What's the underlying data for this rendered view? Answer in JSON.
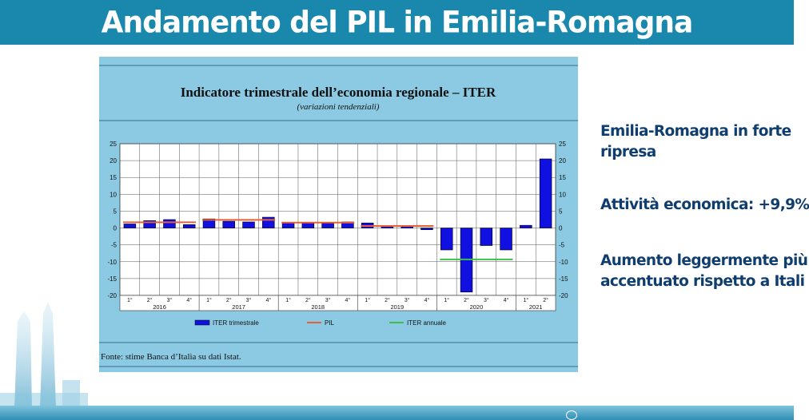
{
  "slide": {
    "title": "Andamento del PIL in Emilia-Romagna",
    "bullets": [
      [
        "Emilia-Romagna in forte",
        "ripresa"
      ],
      [
        "Attività economica: +9,9%"
      ],
      [
        "Aumento leggermente più",
        "accentuato rispetto a Itali"
      ]
    ],
    "colors": {
      "banner": "#1a87ad",
      "text": "#0f3d6e"
    }
  },
  "chart_data": {
    "type": "bar",
    "title": "Indicatore trimestrale dell’economia regionale – ITER",
    "subtitle": "(variazioni tendenziali)",
    "source": "Fonte: stime Banca d’Italia su dati Istat.",
    "ylim": [
      -20,
      25
    ],
    "yticks": [
      25,
      20,
      15,
      10,
      5,
      0,
      -5,
      -10,
      -15,
      -20
    ],
    "grid": true,
    "legend_position": "bottom",
    "years": [
      {
        "label": "2016",
        "quarters": [
          "1°",
          "2°",
          "3°",
          "4°"
        ]
      },
      {
        "label": "2017",
        "quarters": [
          "1°",
          "2°",
          "3°",
          "4°"
        ]
      },
      {
        "label": "2018",
        "quarters": [
          "1°",
          "2°",
          "3°",
          "4°"
        ]
      },
      {
        "label": "2019",
        "quarters": [
          "1°",
          "2°",
          "3°",
          "4°"
        ]
      },
      {
        "label": "2020",
        "quarters": [
          "1°",
          "2°",
          "3°",
          "4°"
        ]
      },
      {
        "label": "2021",
        "quarters": [
          "1°",
          "2°"
        ]
      }
    ],
    "series": [
      {
        "name": "ITER trimestrale",
        "kind": "bar",
        "color": "#1010e0",
        "values": [
          1.2,
          2.2,
          2.5,
          1.0,
          2.7,
          2.0,
          1.8,
          3.2,
          1.5,
          1.5,
          1.4,
          1.8,
          1.5,
          0.6,
          0.6,
          -0.5,
          -6.5,
          -19.0,
          -5.2,
          -6.5,
          0.8,
          20.5
        ]
      },
      {
        "name": "PIL",
        "kind": "step",
        "color": "#e8603a",
        "values": [
          1.7,
          1.7,
          1.7,
          1.7,
          2.4,
          2.4,
          2.4,
          2.4,
          1.6,
          1.6,
          1.6,
          1.6,
          0.6,
          0.6,
          0.6,
          0.6,
          null,
          null,
          null,
          null,
          null,
          null
        ]
      },
      {
        "name": "ITER annuale",
        "kind": "step",
        "color": "#3cbf4a",
        "values": [
          null,
          null,
          null,
          null,
          null,
          null,
          null,
          null,
          null,
          null,
          null,
          null,
          null,
          null,
          null,
          null,
          -9.3,
          -9.3,
          -9.3,
          -9.3,
          null,
          null
        ]
      }
    ]
  }
}
